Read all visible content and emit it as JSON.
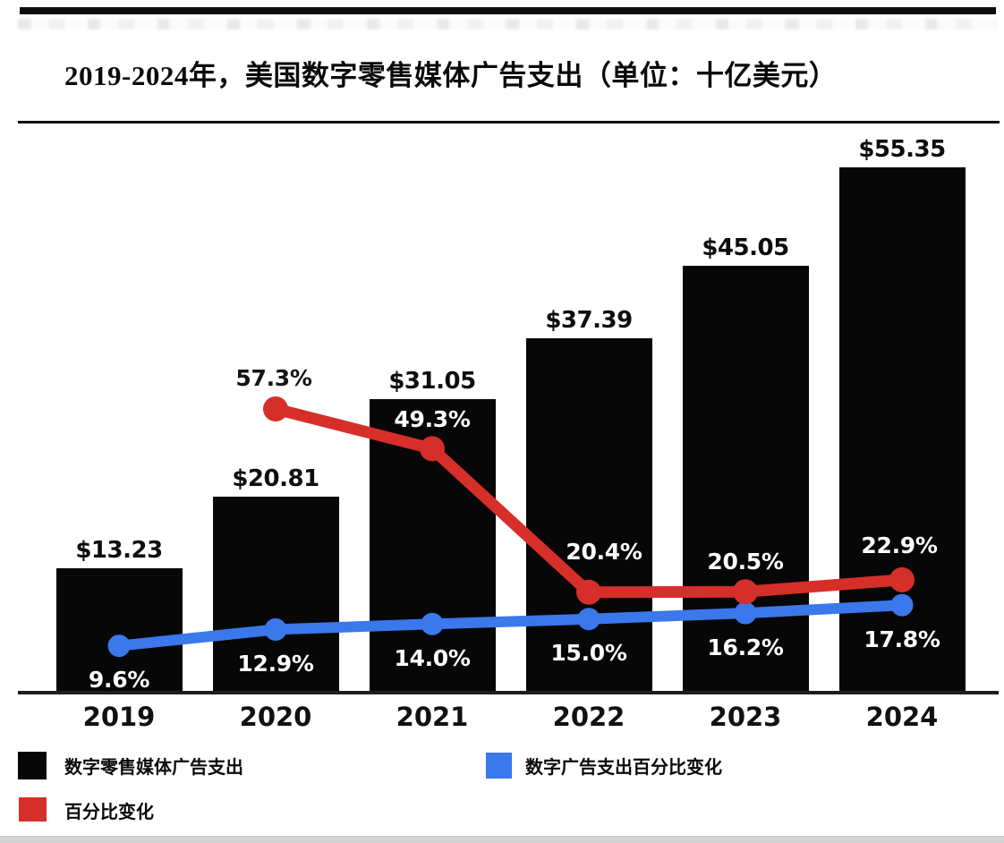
{
  "header": {
    "title": "2019-2024年，美国数字零售媒体广告支出（单位：十亿美元）"
  },
  "chart_data": {
    "type": "bar",
    "subtype": "bar-line-combo",
    "title": "2019-2024年，美国数字零售媒体广告支出（单位：十亿美元）",
    "unit": "十亿美元",
    "categories": [
      "2019",
      "2020",
      "2021",
      "2022",
      "2023",
      "2024"
    ],
    "series": [
      {
        "name": "数字零售媒体广告支出",
        "type": "bar",
        "color": "#070707",
        "values": [
          13.23,
          20.81,
          31.05,
          37.39,
          45.05,
          55.35
        ],
        "labels": [
          "$13.23",
          "$20.81",
          "$31.05",
          "$37.39",
          "$45.05",
          "$55.35"
        ]
      },
      {
        "name": "百分比变化",
        "type": "line",
        "color": "#d62f29",
        "values": [
          null,
          57.3,
          49.3,
          20.4,
          20.5,
          22.9
        ],
        "labels": [
          null,
          "57.3%",
          "49.3%",
          "20.4%",
          "20.5%",
          "22.9%"
        ]
      },
      {
        "name": "数字广告支出百分比变化",
        "type": "line",
        "color": "#3a78ec",
        "values": [
          9.6,
          12.9,
          14.0,
          15.0,
          16.2,
          17.8
        ],
        "labels": [
          "9.6%",
          "12.9%",
          "14.0%",
          "15.0%",
          "16.2%",
          "17.8%"
        ]
      }
    ],
    "axes": {
      "x_ticks_visible": true,
      "value_axis_ticks_visible": false,
      "pct_axis_ticks_visible": false,
      "baseline": "bottom"
    },
    "legend_position": "bottom-left",
    "grid": false
  },
  "legend": {
    "items": [
      {
        "label": "数字零售媒体广告支出",
        "color": "#070707"
      },
      {
        "label": "数字广告支出百分比变化",
        "color": "#3a78ec"
      },
      {
        "label": "百分比变化",
        "color": "#d62f29"
      }
    ]
  }
}
